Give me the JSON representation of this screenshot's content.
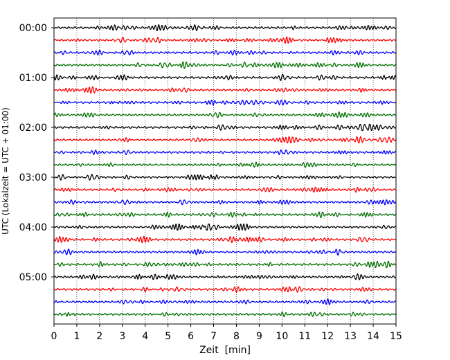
{
  "chart_data": {
    "type": "line",
    "title": "",
    "xlabel": "Zeit  [min]",
    "ylabel": "UTC (Lokalzeit = UTC + 01:00)",
    "xlim": [
      0,
      15
    ],
    "xticks": [
      0,
      1,
      2,
      3,
      4,
      5,
      6,
      7,
      8,
      9,
      10,
      11,
      12,
      13,
      14,
      15
    ],
    "yticks": [
      "00:00",
      "01:00",
      "02:00",
      "03:00",
      "04:00",
      "05:00"
    ],
    "grid": "vertical dotted",
    "trace_interval_min": 15,
    "trace_count": 24,
    "trace_color_cycle": [
      "#000000",
      "#ff0000",
      "#0000ff",
      "#007000"
    ],
    "series": [
      {
        "start": "00:00",
        "color": "#000000"
      },
      {
        "start": "00:15",
        "color": "#ff0000"
      },
      {
        "start": "00:30",
        "color": "#0000ff"
      },
      {
        "start": "00:45",
        "color": "#007000"
      },
      {
        "start": "01:00",
        "color": "#000000"
      },
      {
        "start": "01:15",
        "color": "#ff0000"
      },
      {
        "start": "01:30",
        "color": "#0000ff"
      },
      {
        "start": "01:45",
        "color": "#007000"
      },
      {
        "start": "02:00",
        "color": "#000000"
      },
      {
        "start": "02:15",
        "color": "#ff0000"
      },
      {
        "start": "02:30",
        "color": "#0000ff"
      },
      {
        "start": "02:45",
        "color": "#007000"
      },
      {
        "start": "03:00",
        "color": "#000000"
      },
      {
        "start": "03:15",
        "color": "#ff0000"
      },
      {
        "start": "03:30",
        "color": "#0000ff"
      },
      {
        "start": "03:45",
        "color": "#007000"
      },
      {
        "start": "04:00",
        "color": "#000000"
      },
      {
        "start": "04:15",
        "color": "#ff0000"
      },
      {
        "start": "04:30",
        "color": "#0000ff"
      },
      {
        "start": "04:45",
        "color": "#007000"
      },
      {
        "start": "05:00",
        "color": "#000000"
      },
      {
        "start": "05:15",
        "color": "#ff0000"
      },
      {
        "start": "05:30",
        "color": "#0000ff"
      },
      {
        "start": "05:45",
        "color": "#007000"
      }
    ]
  }
}
